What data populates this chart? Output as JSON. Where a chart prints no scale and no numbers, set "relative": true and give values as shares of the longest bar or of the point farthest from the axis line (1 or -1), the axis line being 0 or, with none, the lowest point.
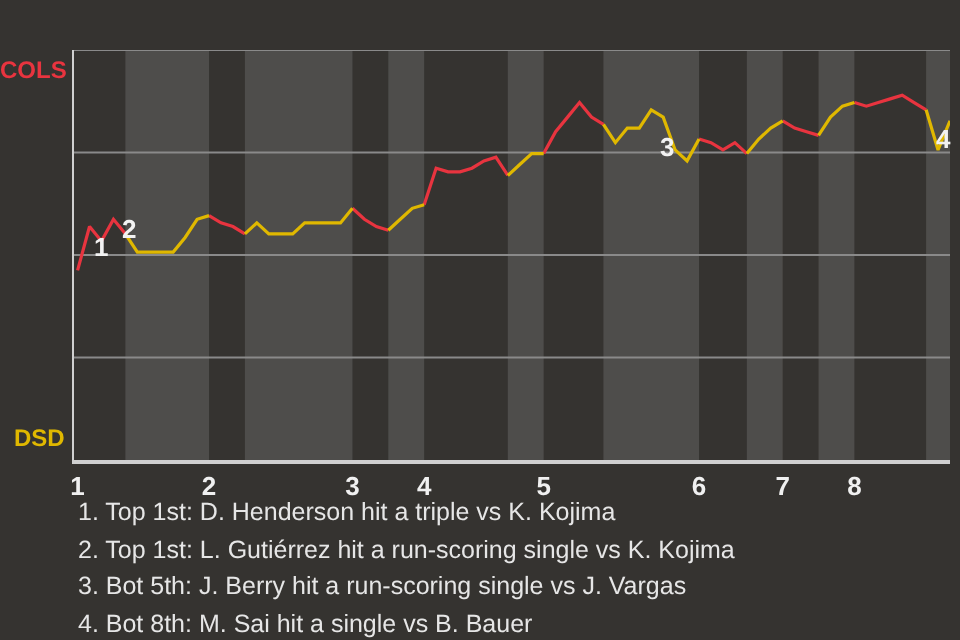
{
  "chart_data": {
    "type": "line",
    "relative": true,
    "categories": [
      "1",
      null,
      null,
      null,
      null,
      null,
      null,
      null,
      null,
      null,
      null,
      "2",
      null,
      null,
      null,
      null,
      null,
      null,
      null,
      null,
      null,
      null,
      null,
      "3",
      null,
      null,
      null,
      null,
      null,
      "4",
      null,
      null,
      null,
      null,
      null,
      null,
      null,
      null,
      null,
      "5",
      null,
      null,
      null,
      null,
      null,
      null,
      null,
      null,
      null,
      null,
      null,
      null,
      "6",
      null,
      null,
      null,
      null,
      null,
      null,
      "7",
      null,
      null,
      null,
      null,
      null,
      "8",
      null,
      null,
      null,
      null,
      null,
      null,
      null,
      null
    ],
    "grid": "y",
    "marker": "none",
    "line_style": "solid",
    "series": [
      {
        "color": "#e8343f",
        "values": [
          0.52,
          0.64,
          0.6,
          0.66,
          0.62,
          null,
          null,
          null,
          null,
          null,
          null,
          0.67,
          0.65,
          0.64,
          0.62,
          null,
          null,
          null,
          null,
          null,
          null,
          null,
          null,
          0.69,
          0.66,
          0.64,
          0.63,
          null,
          null,
          0.7,
          0.8,
          0.79,
          0.79,
          0.8,
          0.82,
          0.83,
          0.78,
          null,
          null,
          0.84,
          0.9,
          0.94,
          0.98,
          0.94,
          0.92,
          null,
          null,
          null,
          null,
          null,
          null,
          null,
          0.88,
          0.87,
          0.85,
          0.87,
          0.84,
          null,
          null,
          0.93,
          0.91,
          0.9,
          0.89,
          null,
          null,
          0.98,
          0.97,
          0.98,
          0.99,
          1,
          0.98,
          0.96,
          null,
          null
        ]
      },
      {
        "color": "#e0b800",
        "values": [
          null,
          null,
          null,
          null,
          0.62,
          0.57,
          0.57,
          0.57,
          0.57,
          0.61,
          0.66,
          0.67,
          null,
          null,
          0.62,
          0.65,
          0.62,
          0.62,
          0.62,
          0.65,
          0.65,
          0.65,
          0.65,
          0.69,
          null,
          null,
          0.63,
          0.66,
          0.69,
          0.7,
          null,
          null,
          null,
          null,
          null,
          null,
          0.78,
          0.81,
          0.84,
          0.84,
          null,
          null,
          null,
          null,
          0.92,
          0.87,
          0.91,
          0.91,
          0.96,
          0.94,
          0.85,
          0.82,
          0.88,
          null,
          null,
          null,
          0.84,
          0.88,
          0.91,
          0.93,
          null,
          null,
          0.89,
          0.94,
          0.97,
          0.98,
          null,
          null,
          null,
          null,
          null,
          0.96,
          0.85,
          0.93
        ]
      }
    ],
    "annotations": [
      "COLS",
      "DSD",
      "1",
      "2",
      "3",
      "4",
      "1. Top 1st: D. Henderson hit a triple vs K. Kojima",
      "2. Top 1st: L. Gutiérrez hit a run-scoring single vs K. Kojima",
      "3. Bot 5th: J. Berry hit a run-scoring single vs J. Vargas",
      "4. Bot 8th: M. Sai hit a single vs B. Bauer"
    ]
  }
}
